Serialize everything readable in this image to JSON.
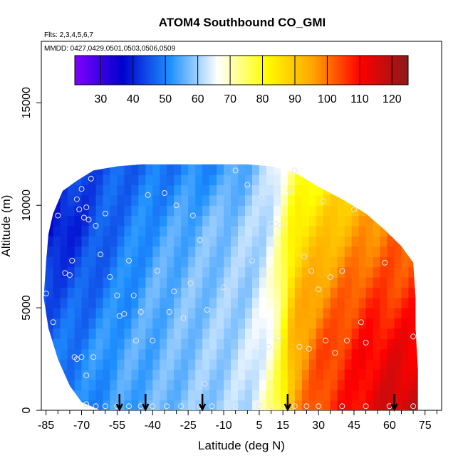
{
  "chart_data": {
    "type": "heatmap",
    "title": "ATOM4 Southbound CO_GMI",
    "flights_note": "Flts: 2,3,4,5,6,7",
    "dates_note": "MMDD: 0427,0429,0501,0503,0506,0509",
    "xlabel": "Latitude (deg N)",
    "ylabel": "Altitude (m)",
    "xlim": [
      -87,
      82
    ],
    "ylim": [
      0,
      18000
    ],
    "x_ticks": [
      -85,
      -70,
      -55,
      -40,
      -25,
      -10,
      5,
      15,
      30,
      45,
      60,
      75
    ],
    "x_minor_ticks": [
      -80,
      -75,
      -65,
      -60,
      -50,
      -45,
      -35,
      -30,
      -20,
      -15,
      -5,
      0,
      10,
      20,
      25,
      35,
      40,
      50,
      55,
      65,
      70,
      80
    ],
    "y_ticks": [
      0,
      5000,
      10000,
      15000
    ],
    "colorbar": {
      "min": 22,
      "max": 125,
      "ticks": [
        30,
        40,
        50,
        60,
        70,
        80,
        90,
        100,
        110,
        120
      ],
      "colors": [
        "#7f00ff",
        "#0000cc",
        "#1e90ff",
        "#ffffff",
        "#ffff00",
        "#ffa500",
        "#ff0000",
        "#8b1a1a"
      ]
    },
    "coverage_boundary": [
      [
        -86,
        5500
      ],
      [
        -85,
        7200
      ],
      [
        -84,
        8600
      ],
      [
        -82,
        9600
      ],
      [
        -78,
        10700
      ],
      [
        -72,
        11200
      ],
      [
        -65,
        11700
      ],
      [
        -55,
        11900
      ],
      [
        -45,
        12000
      ],
      [
        -30,
        12000
      ],
      [
        -15,
        12000
      ],
      [
        0,
        12000
      ],
      [
        10,
        11900
      ],
      [
        20,
        11600
      ],
      [
        30,
        10900
      ],
      [
        40,
        10300
      ],
      [
        50,
        9600
      ],
      [
        58,
        8800
      ],
      [
        65,
        8000
      ],
      [
        70,
        7200
      ],
      [
        71,
        5500
      ],
      [
        71,
        4000
      ],
      [
        72,
        2000
      ],
      [
        72,
        0
      ],
      [
        -62,
        0
      ],
      [
        -70,
        400
      ],
      [
        -75,
        1200
      ],
      [
        -80,
        2500
      ],
      [
        -84,
        4000
      ]
    ],
    "field_control_points": {
      "lat": [
        -85,
        -70,
        -55,
        -40,
        -25,
        -10,
        0,
        8,
        14,
        18,
        22,
        30,
        40,
        50,
        60,
        70
      ],
      "alt": [
        0,
        3000,
        6000,
        9000,
        12000
      ],
      "co": [
        [
          50,
          50,
          53,
          56,
          58,
          60,
          62,
          70,
          80,
          92,
          98,
          104,
          108,
          112,
          116,
          118
        ],
        [
          47,
          50,
          54,
          55,
          58,
          60,
          62,
          66,
          76,
          90,
          96,
          102,
          106,
          110,
          112,
          112
        ],
        [
          44,
          46,
          50,
          55,
          57,
          59,
          60,
          64,
          75,
          86,
          92,
          96,
          100,
          104,
          104,
          106
        ],
        [
          36,
          42,
          48,
          52,
          55,
          58,
          60,
          62,
          70,
          80,
          85,
          88,
          92,
          96,
          100,
          100
        ],
        [
          40,
          44,
          46,
          48,
          50,
          52,
          56,
          60,
          66,
          72,
          76,
          80,
          84,
          88,
          90,
          92
        ]
      ]
    },
    "observations": [
      [
        -85,
        5700
      ],
      [
        -82,
        4300
      ],
      [
        -80,
        9500
      ],
      [
        -77,
        6700
      ],
      [
        -75,
        6600
      ],
      [
        -74,
        7300
      ],
      [
        -72,
        10300
      ],
      [
        -71,
        9800
      ],
      [
        -70,
        10800
      ],
      [
        -69,
        9400
      ],
      [
        -68,
        9900
      ],
      [
        -67,
        9300
      ],
      [
        -66,
        11300
      ],
      [
        -64,
        9000
      ],
      [
        -62,
        7600
      ],
      [
        -60,
        9600
      ],
      [
        -58,
        6500
      ],
      [
        -55,
        5600
      ],
      [
        -54,
        4600
      ],
      [
        -52,
        4700
      ],
      [
        -50,
        7300
      ],
      [
        -48,
        5600
      ],
      [
        -47,
        3400
      ],
      [
        -45,
        4800
      ],
      [
        -42,
        10500
      ],
      [
        -40,
        3400
      ],
      [
        -38,
        6800
      ],
      [
        -35,
        10600
      ],
      [
        -33,
        4800
      ],
      [
        -31,
        5800
      ],
      [
        -30,
        10000
      ],
      [
        -27,
        4500
      ],
      [
        -24,
        6200
      ],
      [
        -23,
        9500
      ],
      [
        -20,
        8300
      ],
      [
        -17,
        4900
      ],
      [
        -10,
        6000
      ],
      [
        -5,
        11700
      ],
      [
        0,
        11000
      ],
      [
        2,
        7300
      ],
      [
        4,
        3000
      ],
      [
        6,
        10400
      ],
      [
        7,
        6700
      ],
      [
        9,
        3100
      ],
      [
        10,
        9100
      ],
      [
        12,
        9100
      ],
      [
        13,
        3500
      ],
      [
        14,
        9000
      ],
      [
        18,
        10700
      ],
      [
        20,
        11700
      ],
      [
        22,
        3100
      ],
      [
        24,
        7500
      ],
      [
        26,
        3000
      ],
      [
        27,
        6800
      ],
      [
        30,
        5900
      ],
      [
        32,
        10200
      ],
      [
        33,
        3400
      ],
      [
        35,
        6500
      ],
      [
        37,
        2800
      ],
      [
        40,
        6800
      ],
      [
        42,
        3400
      ],
      [
        45,
        9800
      ],
      [
        48,
        4300
      ],
      [
        50,
        3300
      ],
      [
        -70,
        2600
      ],
      [
        -72,
        2500
      ],
      [
        -68,
        1700
      ],
      [
        -65,
        2600
      ],
      [
        -18,
        1300
      ],
      [
        -60,
        200
      ],
      [
        -55,
        200
      ],
      [
        -50,
        200
      ],
      [
        -45,
        200
      ],
      [
        -40,
        200
      ],
      [
        -34,
        200
      ],
      [
        -28,
        200
      ],
      [
        -20,
        200
      ],
      [
        -15,
        200
      ],
      [
        -5,
        200
      ],
      [
        5,
        200
      ],
      [
        10,
        200
      ],
      [
        15,
        200
      ],
      [
        20,
        200
      ],
      [
        25,
        200
      ],
      [
        30,
        200
      ],
      [
        40,
        200
      ],
      [
        50,
        200
      ],
      [
        60,
        200
      ],
      [
        70,
        200
      ],
      [
        -64,
        200
      ],
      [
        -68,
        300
      ],
      [
        -73,
        2600
      ],
      [
        70,
        3600
      ],
      [
        58,
        7200
      ]
    ],
    "arrows_lat": [
      -54,
      -43,
      -19,
      17,
      62
    ]
  }
}
